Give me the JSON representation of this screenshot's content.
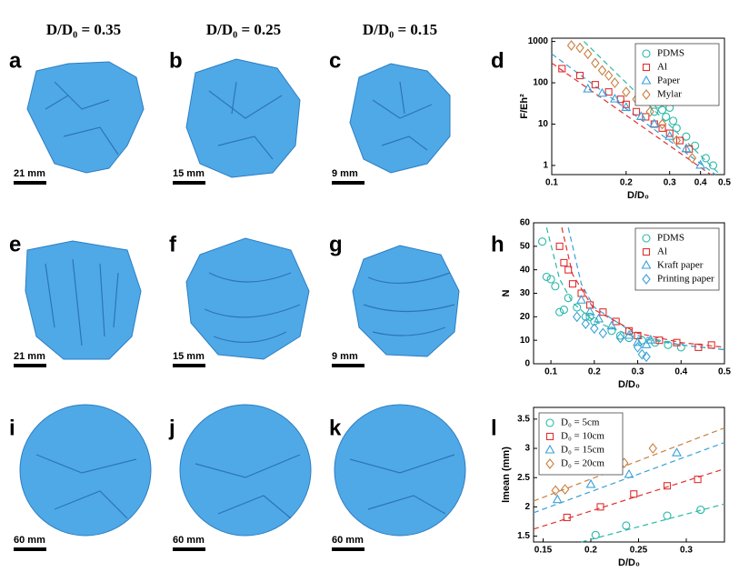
{
  "columns": [
    "D/D₀ = 0.35",
    "D/D₀ = 0.25",
    "D/D₀ = 0.15"
  ],
  "panels": [
    "a",
    "b",
    "c",
    "d",
    "e",
    "f",
    "g",
    "h",
    "i",
    "j",
    "k",
    "l"
  ],
  "scale_bars": [
    "21 mm",
    "15 mm",
    "9 mm",
    "21 mm",
    "15 mm",
    "9 mm",
    "60 mm",
    "60 mm",
    "60 mm"
  ],
  "chart_data": [
    {
      "type": "scatter",
      "xlabel": "D/D₀",
      "ylabel": "F/Eh²",
      "xlog": true,
      "ylog": true,
      "xlim": [
        0.1,
        0.5
      ],
      "ylim": [
        0.6,
        1200
      ],
      "xticks": [
        0.1,
        0.2,
        0.3,
        0.4,
        0.5
      ],
      "yticks": [
        1,
        10,
        100,
        1000
      ],
      "legend": "upper right",
      "series": [
        {
          "name": "PDMS",
          "color": "#2ab8a8",
          "marker": "circle",
          "x": [
            0.26,
            0.27,
            0.28,
            0.29,
            0.3,
            0.31,
            0.32,
            0.35,
            0.38,
            0.42,
            0.45
          ],
          "values": [
            20,
            30,
            22,
            15,
            25,
            12,
            8,
            5,
            3,
            1.5,
            1
          ]
        },
        {
          "name": "Al",
          "color": "#e03030",
          "marker": "square",
          "x": [
            0.11,
            0.13,
            0.15,
            0.17,
            0.19,
            0.2,
            0.22,
            0.24,
            0.26,
            0.28,
            0.3,
            0.33,
            0.36
          ],
          "values": [
            220,
            150,
            90,
            60,
            40,
            30,
            20,
            15,
            10,
            8,
            6,
            4,
            2.5
          ]
        },
        {
          "name": "Paper",
          "color": "#3aa0d8",
          "marker": "triangle",
          "x": [
            0.14,
            0.16,
            0.18,
            0.2,
            0.23,
            0.26,
            0.3,
            0.35,
            0.4
          ],
          "values": [
            70,
            55,
            40,
            25,
            15,
            10,
            5,
            2.5,
            1
          ]
        },
        {
          "name": "Mylar",
          "color": "#c88040",
          "marker": "diamond",
          "x": [
            0.12,
            0.13,
            0.14,
            0.15,
            0.16,
            0.17,
            0.18,
            0.2,
            0.22,
            0.25,
            0.28,
            0.32,
            0.37
          ],
          "values": [
            800,
            700,
            500,
            300,
            200,
            150,
            100,
            60,
            40,
            20,
            10,
            4,
            1.5
          ]
        }
      ],
      "fits": [
        {
          "color": "#2ab8a8",
          "x": [
            0.135,
            0.48
          ],
          "values": [
            1000,
            0.6
          ]
        },
        {
          "color": "#3aa0d8",
          "x": [
            0.1,
            0.46
          ],
          "values": [
            500,
            0.6
          ]
        },
        {
          "color": "#e03030",
          "x": [
            0.1,
            0.44
          ],
          "values": [
            300,
            0.6
          ]
        }
      ]
    },
    {
      "type": "scatter",
      "xlabel": "D/D₀",
      "ylabel": "N",
      "xlog": false,
      "ylog": false,
      "xlim": [
        0.06,
        0.5
      ],
      "ylim": [
        0,
        60
      ],
      "xticks": [
        0.1,
        0.2,
        0.3,
        0.4,
        0.5
      ],
      "yticks": [
        0,
        10,
        20,
        30,
        40,
        50,
        60
      ],
      "legend": "upper right",
      "series": [
        {
          "name": "PDMS",
          "color": "#2ab8a8",
          "marker": "circle",
          "x": [
            0.08,
            0.09,
            0.1,
            0.11,
            0.12,
            0.13,
            0.14,
            0.16,
            0.18,
            0.19,
            0.2,
            0.24,
            0.26,
            0.28,
            0.31,
            0.34,
            0.37,
            0.4
          ],
          "values": [
            52,
            37,
            36,
            33,
            22,
            23,
            28,
            24,
            20,
            20,
            18,
            14,
            12,
            11,
            10,
            9,
            8,
            7
          ]
        },
        {
          "name": "Al",
          "color": "#e03030",
          "marker": "square",
          "x": [
            0.12,
            0.13,
            0.14,
            0.15,
            0.17,
            0.19,
            0.22,
            0.25,
            0.28,
            0.3,
            0.35,
            0.39,
            0.44,
            0.47
          ],
          "values": [
            50,
            43,
            40,
            34,
            30,
            25,
            22,
            18,
            14,
            12,
            10,
            9,
            7,
            8
          ]
        },
        {
          "name": "Kraft paper",
          "color": "#3aa0d8",
          "marker": "triangle",
          "x": [
            0.17,
            0.19,
            0.21,
            0.24,
            0.28,
            0.3,
            0.32,
            0.33
          ],
          "values": [
            27,
            22,
            19,
            16,
            12,
            9,
            8,
            10
          ]
        },
        {
          "name": "Printing paper",
          "color": "#3aa0d8",
          "marker": "diamond",
          "x": [
            0.16,
            0.18,
            0.2,
            0.22,
            0.26,
            0.3,
            0.31,
            0.32
          ],
          "values": [
            20,
            17,
            15,
            13,
            11,
            7,
            4,
            3
          ]
        }
      ],
      "fits": [
        {
          "color": "#2ab8a8",
          "x": [
            0.09,
            0.12,
            0.15,
            0.2,
            0.3,
            0.4,
            0.5
          ],
          "values": [
            58,
            36,
            26,
            18,
            11,
            8,
            6
          ]
        },
        {
          "color": "#e03030",
          "x": [
            0.125,
            0.15,
            0.2,
            0.3,
            0.4,
            0.5
          ],
          "values": [
            58,
            38,
            23,
            13,
            9,
            7
          ]
        },
        {
          "color": "#3aa0d8",
          "x": [
            0.14,
            0.17,
            0.2,
            0.3,
            0.4,
            0.5
          ],
          "values": [
            58,
            34,
            24,
            12,
            8,
            6
          ]
        }
      ]
    },
    {
      "type": "scatter",
      "xlabel": "D/D₀",
      "ylabel": "lmean (mm)",
      "xlog": false,
      "ylog": false,
      "xlim": [
        0.14,
        0.34
      ],
      "ylim": [
        1.4,
        3.7
      ],
      "xticks": [
        0.15,
        0.2,
        0.25,
        0.3
      ],
      "yticks": [
        1.5,
        2,
        2.5,
        3,
        3.5
      ],
      "legend": "upper left",
      "series": [
        {
          "name": "D₀ = 5cm",
          "color": "#2ab8a8",
          "marker": "circle",
          "x": [
            0.205,
            0.237,
            0.28,
            0.315
          ],
          "values": [
            1.52,
            1.68,
            1.85,
            1.95
          ]
        },
        {
          "name": "D₀ = 10cm",
          "color": "#e03030",
          "marker": "square",
          "x": [
            0.175,
            0.21,
            0.245,
            0.28,
            0.312
          ],
          "values": [
            1.82,
            2.0,
            2.22,
            2.36,
            2.47
          ]
        },
        {
          "name": "D₀ = 15cm",
          "color": "#3aa0d8",
          "marker": "triangle",
          "x": [
            0.165,
            0.2,
            0.24,
            0.29
          ],
          "values": [
            2.12,
            2.38,
            2.55,
            2.92
          ]
        },
        {
          "name": "D₀ = 20cm",
          "color": "#c88040",
          "marker": "diamond",
          "x": [
            0.163,
            0.173,
            0.235,
            0.265
          ],
          "values": [
            2.28,
            2.3,
            2.75,
            3.0
          ]
        }
      ],
      "fits": [
        {
          "color": "#2ab8a8",
          "x": [
            0.19,
            0.34
          ],
          "values": [
            1.4,
            2.05
          ]
        },
        {
          "color": "#e03030",
          "x": [
            0.14,
            0.34
          ],
          "values": [
            1.62,
            2.65
          ]
        },
        {
          "color": "#3aa0d8",
          "x": [
            0.14,
            0.34
          ],
          "values": [
            1.9,
            3.1
          ]
        },
        {
          "color": "#c88040",
          "x": [
            0.14,
            0.34
          ],
          "values": [
            2.1,
            3.35
          ]
        }
      ]
    }
  ]
}
